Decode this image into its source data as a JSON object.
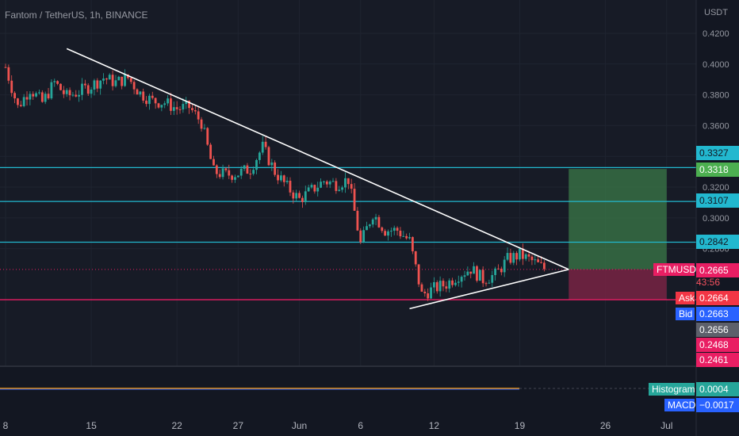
{
  "header": {
    "symbol_title": "Fantom / TetherUS, 1h, BINANCE",
    "currency": "USDT"
  },
  "price_labels": {
    "levels": [
      "0.3327",
      "0.3318",
      "0.3107",
      "0.2842"
    ],
    "last_symbol": "FTMUSDT",
    "last_price": "0.2665",
    "countdown": "43:56",
    "ask_label": "Ask",
    "ask_price": "0.2664",
    "bid_label": "Bid",
    "bid_price": "0.2663",
    "other_prices": [
      "0.2656",
      "0.2468",
      "0.2461"
    ]
  },
  "indicator": {
    "histogram_label": "Histogram",
    "histogram_value": "0.0004",
    "macd_label": "MACD",
    "macd_value": "−0.0017"
  },
  "colors": {
    "background": "#131722",
    "up": "#26a69a",
    "down": "#ef5350",
    "level_line": "#22b8cf",
    "support_line": "#e91e63",
    "profit_zone": "#3b7a48",
    "loss_zone": "#7e2446",
    "trendline": "#ffffff",
    "ask_badge": "#f23645",
    "bid_badge": "#2962ff",
    "histogram_badge": "#26a69a",
    "macd_badge": "#2962ff"
  },
  "chart_data": {
    "type": "candlestick",
    "ylim": [
      0.238,
      0.427
    ],
    "y_ticks": [
      0.42,
      0.4,
      0.38,
      0.36,
      0.34,
      0.32,
      0.3,
      0.28
    ],
    "x_ticks": [
      "8",
      "15",
      "22",
      "27",
      "Jun",
      "6",
      "12",
      "19",
      "26",
      "Jul"
    ],
    "close_path": [
      {
        "x": "2022-05-08",
        "y": 0.398
      },
      {
        "x": "2022-05-09",
        "y": 0.372
      },
      {
        "x": "2022-05-10",
        "y": 0.384
      },
      {
        "x": "2022-05-11",
        "y": 0.375
      },
      {
        "x": "2022-05-12",
        "y": 0.388
      },
      {
        "x": "2022-05-13",
        "y": 0.379
      },
      {
        "x": "2022-05-14",
        "y": 0.382
      },
      {
        "x": "2022-05-15",
        "y": 0.386
      },
      {
        "x": "2022-05-16",
        "y": 0.391
      },
      {
        "x": "2022-05-17",
        "y": 0.388
      },
      {
        "x": "2022-05-18",
        "y": 0.391
      },
      {
        "x": "2022-05-19",
        "y": 0.381
      },
      {
        "x": "2022-05-20",
        "y": 0.376
      },
      {
        "x": "2022-05-21",
        "y": 0.375
      },
      {
        "x": "2022-05-22",
        "y": 0.371
      },
      {
        "x": "2022-05-23",
        "y": 0.372
      },
      {
        "x": "2022-05-24",
        "y": 0.362
      },
      {
        "x": "2022-05-25",
        "y": 0.33
      },
      {
        "x": "2022-05-26",
        "y": 0.328
      },
      {
        "x": "2022-05-27",
        "y": 0.329
      },
      {
        "x": "2022-05-28",
        "y": 0.332
      },
      {
        "x": "2022-05-29",
        "y": 0.346
      },
      {
        "x": "2022-05-30",
        "y": 0.33
      },
      {
        "x": "2022-05-31",
        "y": 0.32
      },
      {
        "x": "2022-06-01",
        "y": 0.312
      },
      {
        "x": "2022-06-02",
        "y": 0.318
      },
      {
        "x": "2022-06-03",
        "y": 0.324
      },
      {
        "x": "2022-06-04",
        "y": 0.322
      },
      {
        "x": "2022-06-05",
        "y": 0.325
      },
      {
        "x": "2022-06-06",
        "y": 0.283
      },
      {
        "x": "2022-06-07",
        "y": 0.303
      },
      {
        "x": "2022-06-08",
        "y": 0.292
      },
      {
        "x": "2022-06-09",
        "y": 0.292
      },
      {
        "x": "2022-06-10",
        "y": 0.285
      },
      {
        "x": "2022-06-11",
        "y": 0.25
      },
      {
        "x": "2022-06-12",
        "y": 0.254
      },
      {
        "x": "2022-06-13",
        "y": 0.257
      },
      {
        "x": "2022-06-14",
        "y": 0.263
      },
      {
        "x": "2022-06-15",
        "y": 0.267
      },
      {
        "x": "2022-06-16",
        "y": 0.26
      },
      {
        "x": "2022-06-17",
        "y": 0.263
      },
      {
        "x": "2022-06-18",
        "y": 0.273
      },
      {
        "x": "2022-06-19",
        "y": 0.276
      },
      {
        "x": "2022-06-20",
        "y": 0.272
      },
      {
        "x": "2022-06-21",
        "y": 0.267
      }
    ],
    "horizontal_levels": [
      0.3327,
      0.3107,
      0.2842
    ],
    "support_level": 0.2468,
    "last_price": 0.2665,
    "trendlines": [
      {
        "from": {
          "x": "2022-05-13",
          "y": 0.41
        },
        "to": {
          "x": "2022-06-23",
          "y": 0.2665
        }
      },
      {
        "from": {
          "x": "2022-06-10",
          "y": 0.241
        },
        "to": {
          "x": "2022-06-23",
          "y": 0.2665
        }
      }
    ],
    "position": {
      "x_start": "2022-06-23",
      "x_end": "2022-07-01",
      "entry": 0.2665,
      "target": 0.3318,
      "stop": 0.2468
    },
    "macd": {
      "histogram": 0.0004,
      "macd": -0.0017
    }
  }
}
